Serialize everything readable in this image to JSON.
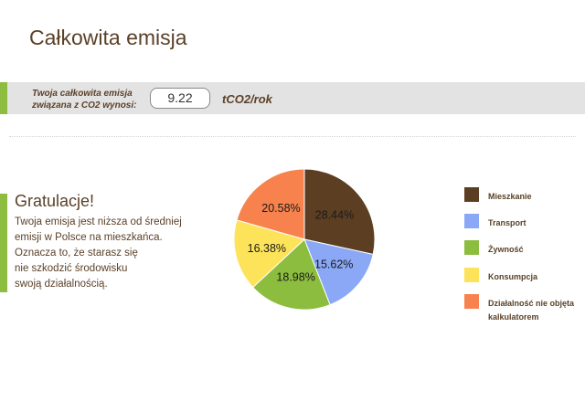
{
  "page": {
    "title": "Całkowita emisja"
  },
  "summary": {
    "label": "Twoja całkowita emisja\nzwiązana z  CO2 wynosi:",
    "value": "9.22",
    "unit": "tCO2/rok"
  },
  "congrats": {
    "title": "Gratulacje!",
    "lines": [
      "Twoja emisja jest niższa od średniej",
      "emisji w Polsce na mieszkańca.",
      "Oznacza to, że starasz się",
      "nie szkodzić środowisku",
      "swoją działalnością."
    ]
  },
  "colors": {
    "accent_green": "#8cbd3f",
    "title_brown": "#5b4128"
  },
  "chart_data": {
    "type": "pie",
    "slices": [
      {
        "name": "Mieszkanie",
        "value": 28.44,
        "label": "28.44%",
        "color": "#5c3f23"
      },
      {
        "name": "Transport",
        "value": 15.62,
        "label": "15.62%",
        "color": "#8aa8f5"
      },
      {
        "name": "Żywność",
        "value": 18.98,
        "label": "18.98%",
        "color": "#8cbd3f"
      },
      {
        "name": "Konsumpcja",
        "value": 16.38,
        "label": "16.38%",
        "color": "#fde35a"
      },
      {
        "name": "Działalność nie objęta kalkulatorem",
        "value": 20.58,
        "label": "20.58%",
        "color": "#f7824d"
      }
    ],
    "legend_position": "right"
  }
}
